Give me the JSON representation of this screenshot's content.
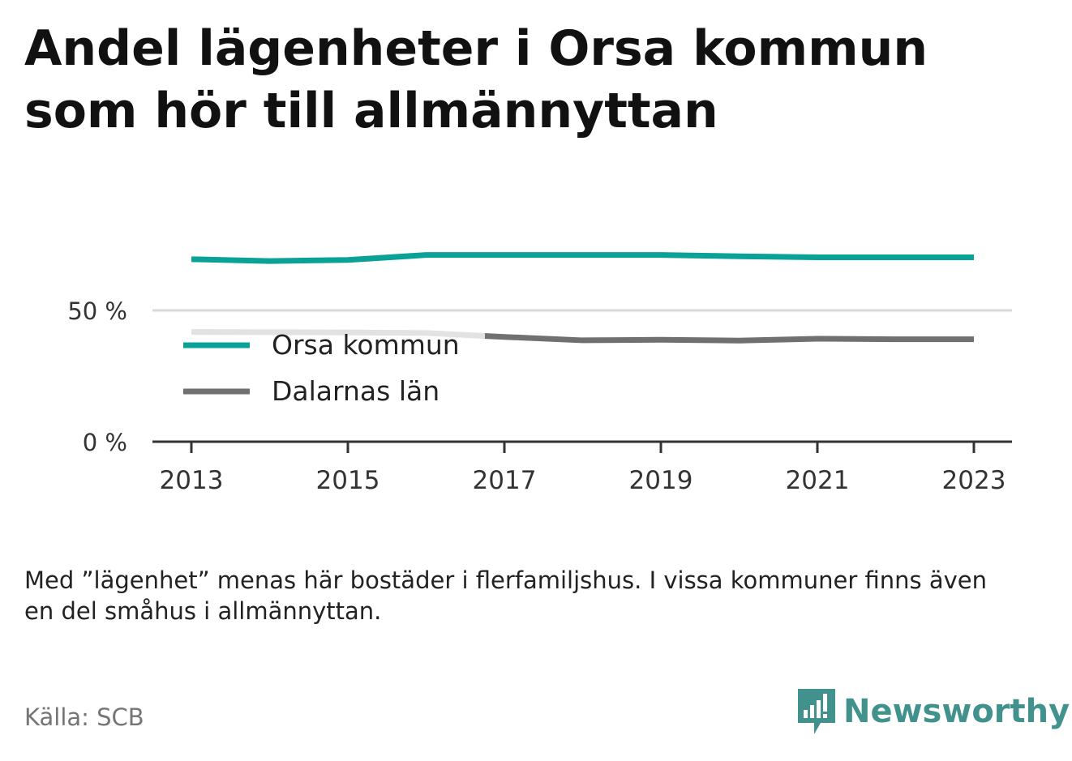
{
  "title": "Andel lägenheter i Orsa kommun som hör till allmännyttan",
  "note": "Med ”lägenhet” menas här bostäder i flerfamiljshus. I vissa kommuner finns även en del småhus i allmännyttan.",
  "source": "Källa: SCB",
  "brand": {
    "name": "Newsworthy",
    "icon": "newsworthy-logo-icon",
    "color": "#41928d"
  },
  "chart_data": {
    "type": "line",
    "x": [
      2013,
      2014,
      2015,
      2016,
      2017,
      2018,
      2019,
      2020,
      2021,
      2022,
      2023
    ],
    "y_ticks": [
      "0 %",
      "50 %"
    ],
    "y_tick_values": [
      0,
      50
    ],
    "x_ticks": [
      "2013",
      "2015",
      "2017",
      "2019",
      "2021",
      "2023"
    ],
    "x_tick_values": [
      2013,
      2015,
      2017,
      2019,
      2021,
      2023
    ],
    "ylim": [
      0,
      88
    ],
    "grid": true,
    "legend": "inside-left",
    "series": [
      {
        "name": "Orsa kommun",
        "color": "#0aa197",
        "values": [
          69.5,
          68.8,
          69.2,
          71.1,
          71.1,
          71.1,
          71.1,
          70.6,
          70.2,
          70.2,
          70.2
        ]
      },
      {
        "name": "Dalarnas län",
        "color": "#707070",
        "values": [
          41.8,
          41.7,
          41.6,
          41.4,
          39.9,
          38.6,
          38.8,
          38.5,
          39.2,
          39.0,
          39.0
        ]
      }
    ]
  }
}
